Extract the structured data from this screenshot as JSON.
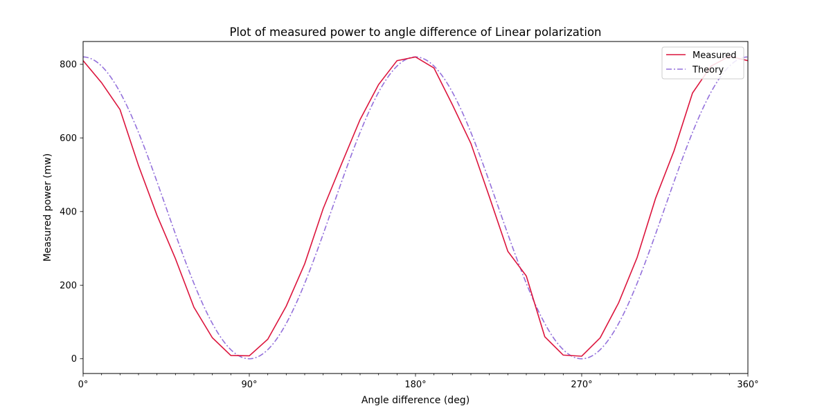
{
  "chart_data": {
    "type": "line",
    "title": "Plot of measured power to angle difference of Linear polarization",
    "xlabel": "Angle difference (deg)",
    "ylabel": "Measured power (mw)",
    "xlim": [
      0,
      360
    ],
    "ylim": [
      -40,
      862
    ],
    "x_ticks": [
      {
        "value": 0,
        "label": "0°"
      },
      {
        "value": 90,
        "label": "90°"
      },
      {
        "value": 180,
        "label": "180°"
      },
      {
        "value": 270,
        "label": "270°"
      },
      {
        "value": 360,
        "label": "360°"
      }
    ],
    "x_minor_ticks": [
      10,
      20,
      30,
      40,
      50,
      60,
      70,
      80,
      100,
      110,
      120,
      130,
      140,
      150,
      160,
      170,
      190,
      200,
      210,
      220,
      230,
      240,
      250,
      260,
      280,
      290,
      300,
      310,
      320,
      330,
      340,
      350
    ],
    "y_ticks": [
      0,
      200,
      400,
      600,
      800
    ],
    "grid": false,
    "legend_position": "upper-right",
    "series": [
      {
        "name": "Measured",
        "color": "#dc143c",
        "style": "solid",
        "x": [
          0,
          10,
          20,
          30,
          40,
          50,
          60,
          70,
          80,
          90,
          100,
          110,
          120,
          130,
          140,
          150,
          160,
          170,
          180,
          190,
          200,
          210,
          220,
          230,
          240,
          250,
          260,
          270,
          280,
          290,
          300,
          310,
          320,
          330,
          340,
          350,
          360
        ],
        "y": [
          810,
          750,
          677,
          525,
          390,
          272,
          140,
          57,
          9,
          8,
          53,
          143,
          258,
          408,
          530,
          650,
          745,
          810,
          820,
          790,
          690,
          585,
          440,
          292,
          225,
          60,
          10,
          7,
          57,
          152,
          275,
          436,
          565,
          722,
          795,
          822,
          810
        ]
      },
      {
        "name": "Theory",
        "color": "#9370db",
        "style": "dashdot",
        "function": "820*cos^2(x)",
        "amplitude": 820
      }
    ]
  }
}
